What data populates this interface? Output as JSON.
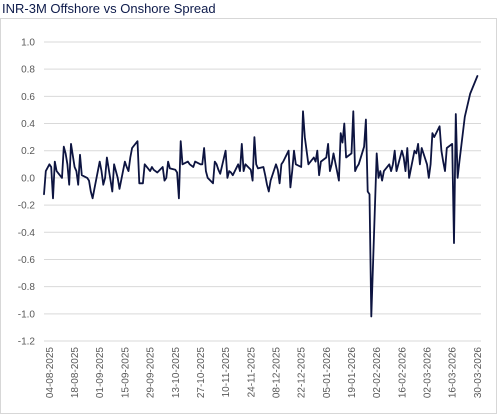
{
  "chart_data": {
    "type": "line",
    "title": "INR-3M Offshore vs Onshore Spread",
    "xlabel": "",
    "ylabel": "",
    "ylim": [
      -1.2,
      1.0
    ],
    "yticks": [
      1.0,
      0.8,
      0.6,
      0.4,
      0.2,
      0.0,
      -0.2,
      -0.4,
      -0.6,
      -0.8,
      -1.0,
      -1.2
    ],
    "ytick_labels": [
      "1.0",
      "0.8",
      "0.6",
      "0.4",
      "0.2",
      "0.0",
      "-0.2",
      "-0.4",
      "-0.6",
      "-0.8",
      "-1.0",
      "-1.2"
    ],
    "x_tick_labels": [
      "04-08-2025",
      "18-08-2025",
      "01-09-2025",
      "15-09-2025",
      "29-09-2025",
      "13-10-2025",
      "27-10-2025",
      "10-11-2025",
      "24-11-2025",
      "08-12-2025",
      "22-12-2025",
      "05-01-2026",
      "19-01-2026",
      "02-02-2026",
      "16-02-2026",
      "02-03-2026",
      "16-03-2026",
      "30-03-2026"
    ],
    "grid": true,
    "line_color": "#0d1440",
    "series": [
      {
        "values": [
          [
            "2025-08-01",
            -0.12
          ],
          [
            "2025-08-02",
            0.05
          ],
          [
            "2025-08-04",
            0.1
          ],
          [
            "2025-08-05",
            0.08
          ],
          [
            "2025-08-06",
            -0.15
          ],
          [
            "2025-08-07",
            0.12
          ],
          [
            "2025-08-08",
            0.05
          ],
          [
            "2025-08-11",
            0.0
          ],
          [
            "2025-08-12",
            0.23
          ],
          [
            "2025-08-13",
            0.18
          ],
          [
            "2025-08-14",
            0.1
          ],
          [
            "2025-08-15",
            -0.05
          ],
          [
            "2025-08-16",
            0.25
          ],
          [
            "2025-08-18",
            0.08
          ],
          [
            "2025-08-19",
            0.05
          ],
          [
            "2025-08-20",
            -0.05
          ],
          [
            "2025-08-21",
            0.17
          ],
          [
            "2025-08-22",
            0.02
          ],
          [
            "2025-08-25",
            0.0
          ],
          [
            "2025-08-26",
            -0.02
          ],
          [
            "2025-08-27",
            -0.1
          ],
          [
            "2025-08-28",
            -0.15
          ],
          [
            "2025-08-29",
            -0.08
          ],
          [
            "2025-09-01",
            0.12
          ],
          [
            "2025-09-02",
            0.05
          ],
          [
            "2025-09-03",
            -0.05
          ],
          [
            "2025-09-04",
            0.0
          ],
          [
            "2025-09-05",
            0.15
          ],
          [
            "2025-09-08",
            -0.1
          ],
          [
            "2025-09-09",
            0.1
          ],
          [
            "2025-09-10",
            0.05
          ],
          [
            "2025-09-11",
            0.0
          ],
          [
            "2025-09-12",
            -0.08
          ],
          [
            "2025-09-15",
            0.12
          ],
          [
            "2025-09-16",
            0.08
          ],
          [
            "2025-09-17",
            0.05
          ],
          [
            "2025-09-18",
            0.15
          ],
          [
            "2025-09-19",
            0.22
          ],
          [
            "2025-09-22",
            0.27
          ],
          [
            "2025-09-23",
            -0.04
          ],
          [
            "2025-09-24",
            -0.04
          ],
          [
            "2025-09-25",
            -0.04
          ],
          [
            "2025-09-26",
            0.1
          ],
          [
            "2025-09-29",
            0.05
          ],
          [
            "2025-09-30",
            0.08
          ],
          [
            "2025-10-01",
            0.06
          ],
          [
            "2025-10-03",
            0.04
          ],
          [
            "2025-10-06",
            0.08
          ],
          [
            "2025-10-07",
            -0.02
          ],
          [
            "2025-10-08",
            0.0
          ],
          [
            "2025-10-09",
            0.12
          ],
          [
            "2025-10-10",
            0.07
          ],
          [
            "2025-10-13",
            0.06
          ],
          [
            "2025-10-14",
            0.04
          ],
          [
            "2025-10-15",
            -0.15
          ],
          [
            "2025-10-16",
            0.27
          ],
          [
            "2025-10-17",
            0.1
          ],
          [
            "2025-10-20",
            0.12
          ],
          [
            "2025-10-21",
            0.1
          ],
          [
            "2025-10-23",
            0.08
          ],
          [
            "2025-10-24",
            0.12
          ],
          [
            "2025-10-27",
            0.1
          ],
          [
            "2025-10-28",
            0.1
          ],
          [
            "2025-10-29",
            0.22
          ],
          [
            "2025-10-30",
            0.05
          ],
          [
            "2025-10-31",
            0.0
          ],
          [
            "2025-11-03",
            -0.04
          ],
          [
            "2025-11-04",
            0.12
          ],
          [
            "2025-11-05",
            0.1
          ],
          [
            "2025-11-06",
            0.06
          ],
          [
            "2025-11-07",
            0.03
          ],
          [
            "2025-11-10",
            0.2
          ],
          [
            "2025-11-11",
            0.0
          ],
          [
            "2025-11-12",
            0.05
          ],
          [
            "2025-11-13",
            0.04
          ],
          [
            "2025-11-14",
            0.02
          ],
          [
            "2025-11-17",
            0.1
          ],
          [
            "2025-11-18",
            0.05
          ],
          [
            "2025-11-19",
            0.25
          ],
          [
            "2025-11-20",
            0.05
          ],
          [
            "2025-11-21",
            0.1
          ],
          [
            "2025-11-24",
            0.06
          ],
          [
            "2025-11-25",
            -0.02
          ],
          [
            "2025-11-26",
            0.3
          ],
          [
            "2025-11-27",
            0.1
          ],
          [
            "2025-11-28",
            0.07
          ],
          [
            "2025-12-01",
            0.08
          ],
          [
            "2025-12-02",
            0.02
          ],
          [
            "2025-12-03",
            -0.05
          ],
          [
            "2025-12-04",
            -0.1
          ],
          [
            "2025-12-05",
            -0.02
          ],
          [
            "2025-12-08",
            0.1
          ],
          [
            "2025-12-09",
            0.06
          ],
          [
            "2025-12-10",
            -0.04
          ],
          [
            "2025-12-11",
            0.1
          ],
          [
            "2025-12-12",
            0.12
          ],
          [
            "2025-12-15",
            0.2
          ],
          [
            "2025-12-16",
            -0.07
          ],
          [
            "2025-12-17",
            0.05
          ],
          [
            "2025-12-18",
            0.2
          ],
          [
            "2025-12-19",
            0.1
          ],
          [
            "2025-12-22",
            0.08
          ],
          [
            "2025-12-23",
            0.49
          ],
          [
            "2025-12-24",
            0.3
          ],
          [
            "2025-12-26",
            0.1
          ],
          [
            "2025-12-29",
            0.15
          ],
          [
            "2025-12-30",
            0.12
          ],
          [
            "2025-12-31",
            0.2
          ],
          [
            "2026-01-01",
            0.02
          ],
          [
            "2026-01-02",
            0.12
          ],
          [
            "2026-01-05",
            0.15
          ],
          [
            "2026-01-06",
            0.25
          ],
          [
            "2026-01-07",
            0.05
          ],
          [
            "2026-01-08",
            0.1
          ],
          [
            "2026-01-09",
            0.18
          ],
          [
            "2026-01-12",
            -0.02
          ],
          [
            "2026-01-13",
            0.33
          ],
          [
            "2026-01-14",
            0.26
          ],
          [
            "2026-01-15",
            0.4
          ],
          [
            "2026-01-16",
            0.15
          ],
          [
            "2026-01-19",
            0.18
          ],
          [
            "2026-01-20",
            0.49
          ],
          [
            "2026-01-21",
            0.05
          ],
          [
            "2026-01-22",
            0.08
          ],
          [
            "2026-01-23",
            0.1
          ],
          [
            "2026-01-26",
            0.23
          ],
          [
            "2026-01-27",
            0.43
          ],
          [
            "2026-01-28",
            -0.1
          ],
          [
            "2026-01-29",
            -0.12
          ],
          [
            "2026-01-30",
            -1.02
          ],
          [
            "2026-02-02",
            0.18
          ],
          [
            "2026-02-03",
            0.0
          ],
          [
            "2026-02-04",
            0.05
          ],
          [
            "2026-02-05",
            -0.02
          ],
          [
            "2026-02-06",
            0.05
          ],
          [
            "2026-02-09",
            0.1
          ],
          [
            "2026-02-10",
            0.05
          ],
          [
            "2026-02-11",
            0.1
          ],
          [
            "2026-02-12",
            0.2
          ],
          [
            "2026-02-13",
            0.05
          ],
          [
            "2026-02-16",
            0.2
          ],
          [
            "2026-02-17",
            0.15
          ],
          [
            "2026-02-18",
            0.05
          ],
          [
            "2026-02-19",
            0.22
          ],
          [
            "2026-02-20",
            0.0
          ],
          [
            "2026-02-23",
            0.2
          ],
          [
            "2026-02-24",
            0.18
          ],
          [
            "2026-02-25",
            0.25
          ],
          [
            "2026-02-26",
            0.1
          ],
          [
            "2026-02-27",
            0.22
          ],
          [
            "2026-03-02",
            0.1
          ],
          [
            "2026-03-03",
            0.0
          ],
          [
            "2026-03-04",
            0.1
          ],
          [
            "2026-03-05",
            0.33
          ],
          [
            "2026-03-06",
            0.3
          ],
          [
            "2026-03-09",
            0.38
          ],
          [
            "2026-03-10",
            0.2
          ],
          [
            "2026-03-11",
            0.12
          ],
          [
            "2026-03-12",
            0.05
          ],
          [
            "2026-03-13",
            0.22
          ],
          [
            "2026-03-16",
            0.25
          ],
          [
            "2026-03-17",
            -0.48
          ],
          [
            "2026-03-18",
            0.47
          ],
          [
            "2026-03-19",
            0.0
          ],
          [
            "2026-03-20",
            0.12
          ],
          [
            "2026-03-23",
            0.45
          ],
          [
            "2026-03-26",
            0.62
          ],
          [
            "2026-03-30",
            0.75
          ]
        ]
      }
    ]
  }
}
